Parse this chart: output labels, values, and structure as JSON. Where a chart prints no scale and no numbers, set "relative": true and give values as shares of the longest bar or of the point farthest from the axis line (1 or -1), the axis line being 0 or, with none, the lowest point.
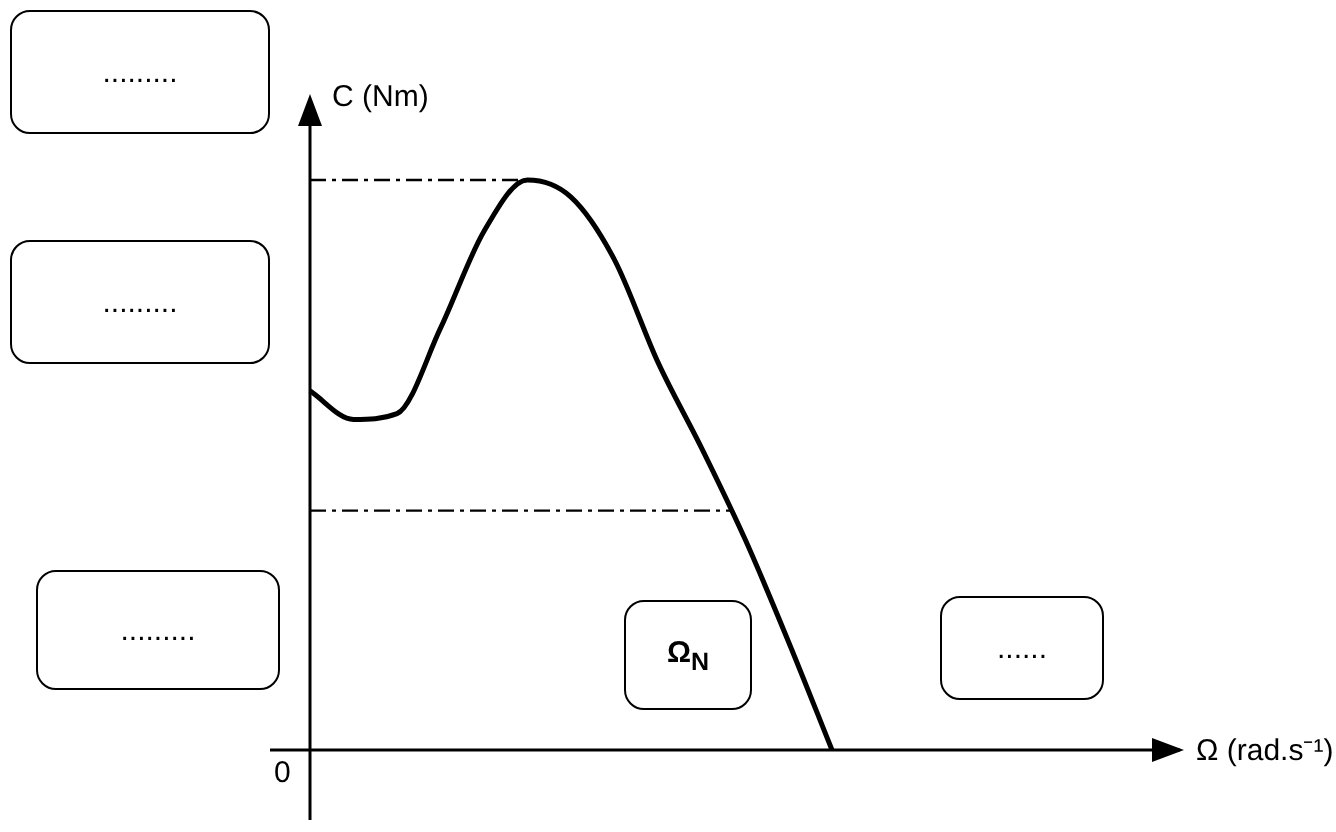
{
  "chart_data": {
    "type": "line",
    "relative": true,
    "xlabel": "Ω (rad.s⁻¹)",
    "ylabel": "C (Nm)",
    "categories": [
      null,
      null,
      null,
      null,
      null,
      null,
      null,
      null,
      null,
      null,
      null,
      null,
      null,
      null,
      null,
      null,
      null,
      null,
      null,
      null,
      null
    ],
    "series": [
      {
        "color": "#000000",
        "values": [
          0.63,
          0.58,
          0.59,
          0.74,
          0.91,
          1,
          0.97,
          0.86,
          0.68,
          0.53,
          0.37,
          0.19,
          0,
          null,
          null,
          null,
          null,
          null,
          null,
          null,
          null
        ]
      }
    ],
    "ref_lines": [
      {
        "axis": "y",
        "value": 1,
        "color": "#000000",
        "line_style": "dashed"
      },
      {
        "axis": "y",
        "value": 0.42,
        "color": "#000000",
        "line_style": "dashed"
      }
    ],
    "annotations": [
      "0",
      ".........",
      ".........",
      ".........",
      "Ω$_{N}$",
      "......"
    ],
    "legend": false,
    "marker": "none",
    "line_style": "solid"
  }
}
